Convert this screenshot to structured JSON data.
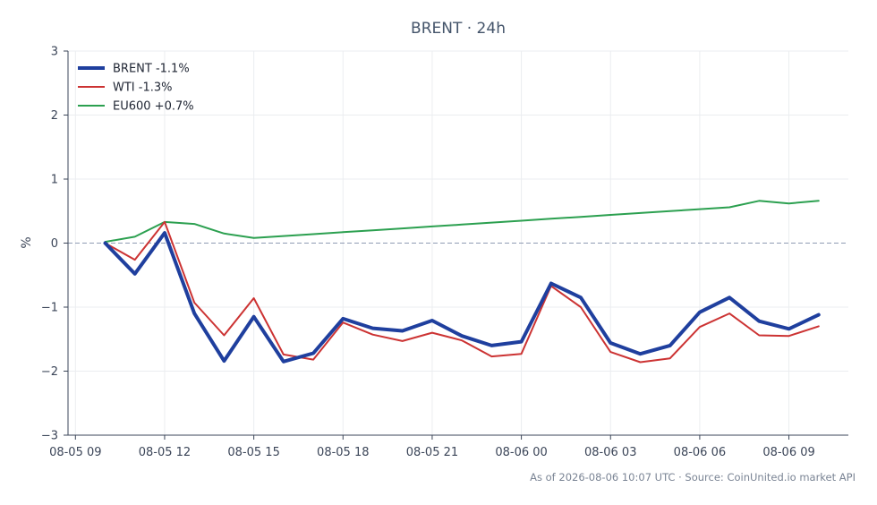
{
  "chart_data": {
    "type": "line",
    "title": "BRENT · 24h",
    "ylabel": "%",
    "xlabel": "",
    "ylim": [
      -3,
      3
    ],
    "yticks": [
      3,
      2,
      1,
      0,
      -1,
      -2,
      -3
    ],
    "ytick_labels": [
      "3",
      "2",
      "1",
      "0",
      "−1",
      "−2",
      "−3"
    ],
    "xlim": [
      "2026-08-05 08:45",
      "2026-08-06 11:00"
    ],
    "xticks": [
      {
        "t": "2026-08-05 09:00",
        "label": "08-05 09"
      },
      {
        "t": "2026-08-05 12:00",
        "label": "08-05 12"
      },
      {
        "t": "2026-08-05 15:00",
        "label": "08-05 15"
      },
      {
        "t": "2026-08-05 18:00",
        "label": "08-05 18"
      },
      {
        "t": "2026-08-05 21:00",
        "label": "08-05 21"
      },
      {
        "t": "2026-08-06 00:00",
        "label": "08-06 00"
      },
      {
        "t": "2026-08-06 03:00",
        "label": "08-06 03"
      },
      {
        "t": "2026-08-06 06:00",
        "label": "08-06 06"
      },
      {
        "t": "2026-08-06 09:00",
        "label": "08-06 09"
      }
    ],
    "grid": true,
    "zero_line": true,
    "legend_position": "top-left",
    "x": [
      "2026-08-05 10:00",
      "2026-08-05 11:00",
      "2026-08-05 12:00",
      "2026-08-05 13:00",
      "2026-08-05 14:00",
      "2026-08-05 15:00",
      "2026-08-05 16:00",
      "2026-08-05 17:00",
      "2026-08-05 18:00",
      "2026-08-05 19:00",
      "2026-08-05 20:00",
      "2026-08-05 21:00",
      "2026-08-05 22:00",
      "2026-08-05 23:00",
      "2026-08-06 00:00",
      "2026-08-06 01:00",
      "2026-08-06 02:00",
      "2026-08-06 03:00",
      "2026-08-06 04:00",
      "2026-08-06 05:00",
      "2026-08-06 06:00",
      "2026-08-06 07:00",
      "2026-08-06 08:00",
      "2026-08-06 09:00",
      "2026-08-06 10:00"
    ],
    "series": [
      {
        "name": "BRENT -1.1%",
        "color": "#1f3f9e",
        "values": [
          0.0,
          -0.48,
          0.16,
          -1.1,
          -1.84,
          -1.15,
          -1.85,
          -1.72,
          -1.18,
          -1.33,
          -1.37,
          -1.21,
          -1.45,
          -1.6,
          -1.54,
          -0.63,
          -0.85,
          -1.56,
          -1.73,
          -1.6,
          -1.08,
          -0.85,
          -1.22,
          -1.34,
          -1.12
        ]
      },
      {
        "name": "WTI -1.3%",
        "color": "#cc3333",
        "values": [
          0.0,
          -0.26,
          0.33,
          -0.93,
          -1.44,
          -0.86,
          -1.74,
          -1.82,
          -1.24,
          -1.43,
          -1.53,
          -1.4,
          -1.52,
          -1.77,
          -1.73,
          -0.67,
          -1.0,
          -1.7,
          -1.86,
          -1.8,
          -1.31,
          -1.1,
          -1.44,
          -1.45,
          -1.3
        ]
      },
      {
        "name": "EU600 +0.7%",
        "color": "#2ca050",
        "values": [
          0.02,
          0.1,
          0.33,
          0.3,
          0.15,
          0.08,
          0.11,
          0.14,
          0.17,
          0.2,
          0.23,
          0.26,
          0.29,
          0.32,
          0.35,
          0.38,
          0.41,
          0.44,
          0.47,
          0.5,
          0.53,
          0.56,
          0.66,
          0.62,
          0.66
        ]
      }
    ]
  },
  "footer": "As of 2026-08-06 10:07 UTC · Source: CoinUnited.io market API"
}
